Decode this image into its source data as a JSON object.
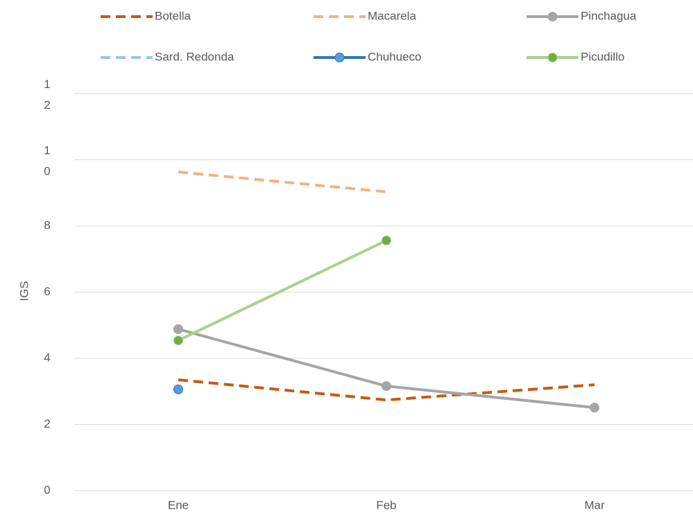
{
  "chart_data": {
    "type": "line",
    "y_label": "IGS",
    "categories": [
      "Ene",
      "Feb",
      "Mar"
    ],
    "ylim": [
      0,
      12
    ],
    "yticks": [
      0,
      2,
      4,
      6,
      8,
      10,
      12
    ],
    "grid": true,
    "series": [
      {
        "name": "Botella",
        "color": "#c55a11",
        "dashed": true,
        "marker": false,
        "values": [
          3.35,
          2.74,
          3.2
        ]
      },
      {
        "name": "Macarela",
        "color": "#f4b183",
        "dashed": true,
        "marker": false,
        "values": [
          9.63,
          9.03,
          null
        ]
      },
      {
        "name": "Pinchagua",
        "color": "#a5a5a5",
        "dashed": false,
        "marker": true,
        "marker_color": "#a5a5a5",
        "values": [
          4.88,
          3.16,
          2.51
        ]
      },
      {
        "name": "Sard. Redonda",
        "color": "#9dc3e6",
        "dashed": true,
        "marker": false,
        "values": [
          null,
          null,
          null
        ]
      },
      {
        "name": "Chuhueco",
        "color": "#2e75b6",
        "dashed": false,
        "marker": true,
        "marker_color": "#5b9bd5",
        "values": [
          3.06,
          null,
          null
        ]
      },
      {
        "name": "Picudillo",
        "color": "#a9d18e",
        "dashed": false,
        "marker": true,
        "marker_color": "#70ad47",
        "values": [
          4.54,
          7.56,
          null
        ]
      }
    ]
  }
}
